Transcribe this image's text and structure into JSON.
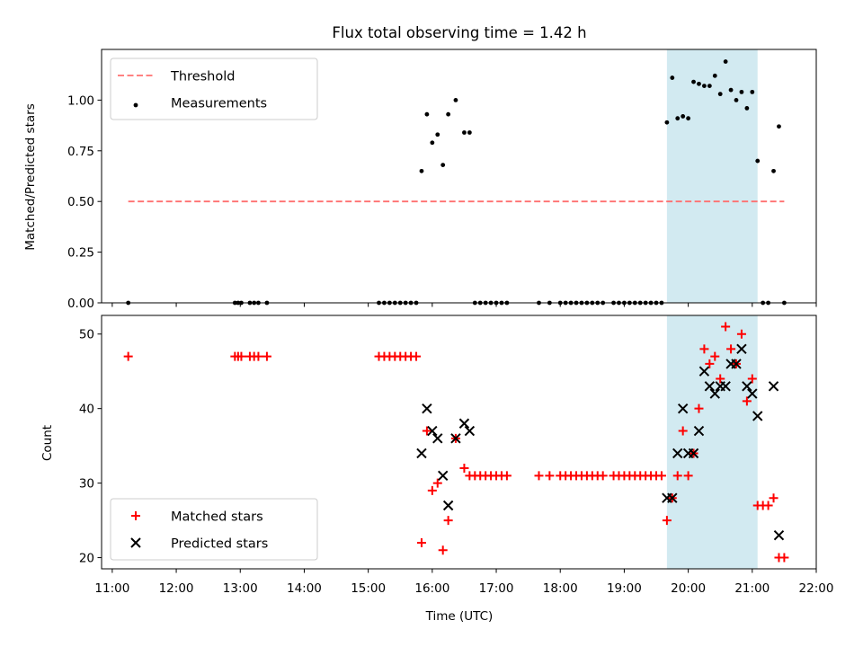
{
  "chart_data": [
    {
      "type": "scatter",
      "title": "Flux total observing time = 1.42 h",
      "xlabel": "",
      "ylabel": "Matched/Predicted stars",
      "xlim": [
        "10:50",
        "22:00"
      ],
      "ylim": [
        0,
        1.25
      ],
      "yticks": [
        "0.00",
        "0.25",
        "0.50",
        "0.75",
        "1.00"
      ],
      "highlight_span": [
        "19:40",
        "21:05"
      ],
      "highlight_color": "#add8e6",
      "legend_position": "upper left",
      "threshold": {
        "name": "Threshold",
        "y": 0.5,
        "x": [
          "11:15",
          "21:30"
        ],
        "color": "#ff7070",
        "style": "dashed"
      },
      "series": [
        {
          "name": "Measurements",
          "color": "#000000",
          "marker": "dot",
          "points": [
            [
              "11:15",
              0
            ],
            [
              "12:55",
              0
            ],
            [
              "12:58",
              0
            ],
            [
              "13:01",
              0
            ],
            [
              "13:09",
              0
            ],
            [
              "13:13",
              0
            ],
            [
              "13:17",
              0
            ],
            [
              "13:25",
              0
            ],
            [
              "15:10",
              0
            ],
            [
              "15:15",
              0
            ],
            [
              "15:20",
              0
            ],
            [
              "15:25",
              0
            ],
            [
              "15:30",
              0
            ],
            [
              "15:35",
              0
            ],
            [
              "15:40",
              0
            ],
            [
              "15:45",
              0
            ],
            [
              "15:50",
              0.65
            ],
            [
              "15:55",
              0.93
            ],
            [
              "16:00",
              0.79
            ],
            [
              "16:05",
              0.83
            ],
            [
              "16:10",
              0.68
            ],
            [
              "16:15",
              0.93
            ],
            [
              "16:22",
              1.0
            ],
            [
              "16:30",
              0.84
            ],
            [
              "16:35",
              0.84
            ],
            [
              "16:40",
              0
            ],
            [
              "16:45",
              0
            ],
            [
              "16:50",
              0
            ],
            [
              "16:55",
              0
            ],
            [
              "17:00",
              0
            ],
            [
              "17:05",
              0
            ],
            [
              "17:10",
              0
            ],
            [
              "17:40",
              0
            ],
            [
              "17:50",
              0
            ],
            [
              "18:00",
              0
            ],
            [
              "18:05",
              0
            ],
            [
              "18:10",
              0
            ],
            [
              "18:15",
              0
            ],
            [
              "18:20",
              0
            ],
            [
              "18:25",
              0
            ],
            [
              "18:30",
              0
            ],
            [
              "18:35",
              0
            ],
            [
              "18:40",
              0
            ],
            [
              "18:50",
              0
            ],
            [
              "18:55",
              0
            ],
            [
              "19:00",
              0
            ],
            [
              "19:05",
              0
            ],
            [
              "19:10",
              0
            ],
            [
              "19:15",
              0
            ],
            [
              "19:20",
              0
            ],
            [
              "19:25",
              0
            ],
            [
              "19:30",
              0
            ],
            [
              "19:35",
              0
            ],
            [
              "19:40",
              0.89
            ],
            [
              "19:45",
              1.11
            ],
            [
              "19:50",
              0.91
            ],
            [
              "19:55",
              0.92
            ],
            [
              "20:00",
              0.91
            ],
            [
              "20:05",
              1.09
            ],
            [
              "20:10",
              1.08
            ],
            [
              "20:15",
              1.07
            ],
            [
              "20:20",
              1.07
            ],
            [
              "20:25",
              1.12
            ],
            [
              "20:30",
              1.03
            ],
            [
              "20:35",
              1.19
            ],
            [
              "20:40",
              1.05
            ],
            [
              "20:45",
              1.0
            ],
            [
              "20:50",
              1.04
            ],
            [
              "20:55",
              0.96
            ],
            [
              "21:00",
              1.04
            ],
            [
              "21:05",
              0.7
            ],
            [
              "21:10",
              0
            ],
            [
              "21:15",
              0
            ],
            [
              "21:20",
              0.65
            ],
            [
              "21:25",
              0.87
            ],
            [
              "21:30",
              0
            ]
          ]
        }
      ]
    },
    {
      "type": "scatter",
      "title": "",
      "xlabel": "Time (UTC)",
      "ylabel": "Count",
      "xlim": [
        "10:50",
        "22:00"
      ],
      "ylim": [
        18.5,
        52.5
      ],
      "xticks": [
        "11:00",
        "12:00",
        "13:00",
        "14:00",
        "15:00",
        "16:00",
        "17:00",
        "18:00",
        "19:00",
        "20:00",
        "21:00",
        "22:00"
      ],
      "yticks": [
        "20",
        "30",
        "40",
        "50"
      ],
      "highlight_span": [
        "19:40",
        "21:05"
      ],
      "highlight_color": "#add8e6",
      "legend_position": "lower left",
      "series": [
        {
          "name": "Matched stars",
          "color": "#ff0000",
          "marker": "plus",
          "points": [
            [
              "11:15",
              47
            ],
            [
              "12:55",
              47
            ],
            [
              "12:58",
              47
            ],
            [
              "13:01",
              47
            ],
            [
              "13:09",
              47
            ],
            [
              "13:13",
              47
            ],
            [
              "13:17",
              47
            ],
            [
              "13:25",
              47
            ],
            [
              "15:10",
              47
            ],
            [
              "15:15",
              47
            ],
            [
              "15:20",
              47
            ],
            [
              "15:25",
              47
            ],
            [
              "15:30",
              47
            ],
            [
              "15:35",
              47
            ],
            [
              "15:40",
              47
            ],
            [
              "15:45",
              47
            ],
            [
              "15:50",
              22
            ],
            [
              "15:55",
              37
            ],
            [
              "16:00",
              29
            ],
            [
              "16:05",
              30
            ],
            [
              "16:10",
              21
            ],
            [
              "16:15",
              25
            ],
            [
              "16:22",
              36
            ],
            [
              "16:30",
              32
            ],
            [
              "16:35",
              31
            ],
            [
              "16:40",
              31
            ],
            [
              "16:45",
              31
            ],
            [
              "16:50",
              31
            ],
            [
              "16:55",
              31
            ],
            [
              "17:00",
              31
            ],
            [
              "17:05",
              31
            ],
            [
              "17:10",
              31
            ],
            [
              "17:40",
              31
            ],
            [
              "17:50",
              31
            ],
            [
              "18:00",
              31
            ],
            [
              "18:05",
              31
            ],
            [
              "18:10",
              31
            ],
            [
              "18:15",
              31
            ],
            [
              "18:20",
              31
            ],
            [
              "18:25",
              31
            ],
            [
              "18:30",
              31
            ],
            [
              "18:35",
              31
            ],
            [
              "18:40",
              31
            ],
            [
              "18:50",
              31
            ],
            [
              "18:55",
              31
            ],
            [
              "19:00",
              31
            ],
            [
              "19:05",
              31
            ],
            [
              "19:10",
              31
            ],
            [
              "19:15",
              31
            ],
            [
              "19:20",
              31
            ],
            [
              "19:25",
              31
            ],
            [
              "19:30",
              31
            ],
            [
              "19:35",
              31
            ],
            [
              "19:40",
              25
            ],
            [
              "19:45",
              28
            ],
            [
              "19:50",
              31
            ],
            [
              "19:55",
              37
            ],
            [
              "20:00",
              31
            ],
            [
              "20:05",
              34
            ],
            [
              "20:10",
              40
            ],
            [
              "20:15",
              48
            ],
            [
              "20:20",
              46
            ],
            [
              "20:25",
              47
            ],
            [
              "20:30",
              44
            ],
            [
              "20:35",
              51
            ],
            [
              "20:40",
              48
            ],
            [
              "20:45",
              46
            ],
            [
              "20:50",
              50
            ],
            [
              "20:55",
              41
            ],
            [
              "21:00",
              44
            ],
            [
              "21:05",
              27
            ],
            [
              "21:10",
              27
            ],
            [
              "21:15",
              27
            ],
            [
              "21:20",
              28
            ],
            [
              "21:25",
              20
            ],
            [
              "21:30",
              20
            ]
          ]
        },
        {
          "name": "Predicted stars",
          "color": "#000000",
          "marker": "x",
          "points": [
            [
              "15:50",
              34
            ],
            [
              "15:55",
              40
            ],
            [
              "16:00",
              37
            ],
            [
              "16:05",
              36
            ],
            [
              "16:10",
              31
            ],
            [
              "16:15",
              27
            ],
            [
              "16:22",
              36
            ],
            [
              "16:30",
              38
            ],
            [
              "16:35",
              37
            ],
            [
              "19:40",
              28
            ],
            [
              "19:45",
              28
            ],
            [
              "19:50",
              34
            ],
            [
              "19:55",
              40
            ],
            [
              "20:00",
              34
            ],
            [
              "20:05",
              34
            ],
            [
              "20:10",
              37
            ],
            [
              "20:15",
              45
            ],
            [
              "20:20",
              43
            ],
            [
              "20:25",
              42
            ],
            [
              "20:30",
              43
            ],
            [
              "20:35",
              43
            ],
            [
              "20:40",
              46
            ],
            [
              "20:45",
              46
            ],
            [
              "20:50",
              48
            ],
            [
              "20:55",
              43
            ],
            [
              "21:00",
              42
            ],
            [
              "21:05",
              39
            ],
            [
              "21:20",
              43
            ],
            [
              "21:25",
              23
            ]
          ]
        }
      ]
    }
  ]
}
